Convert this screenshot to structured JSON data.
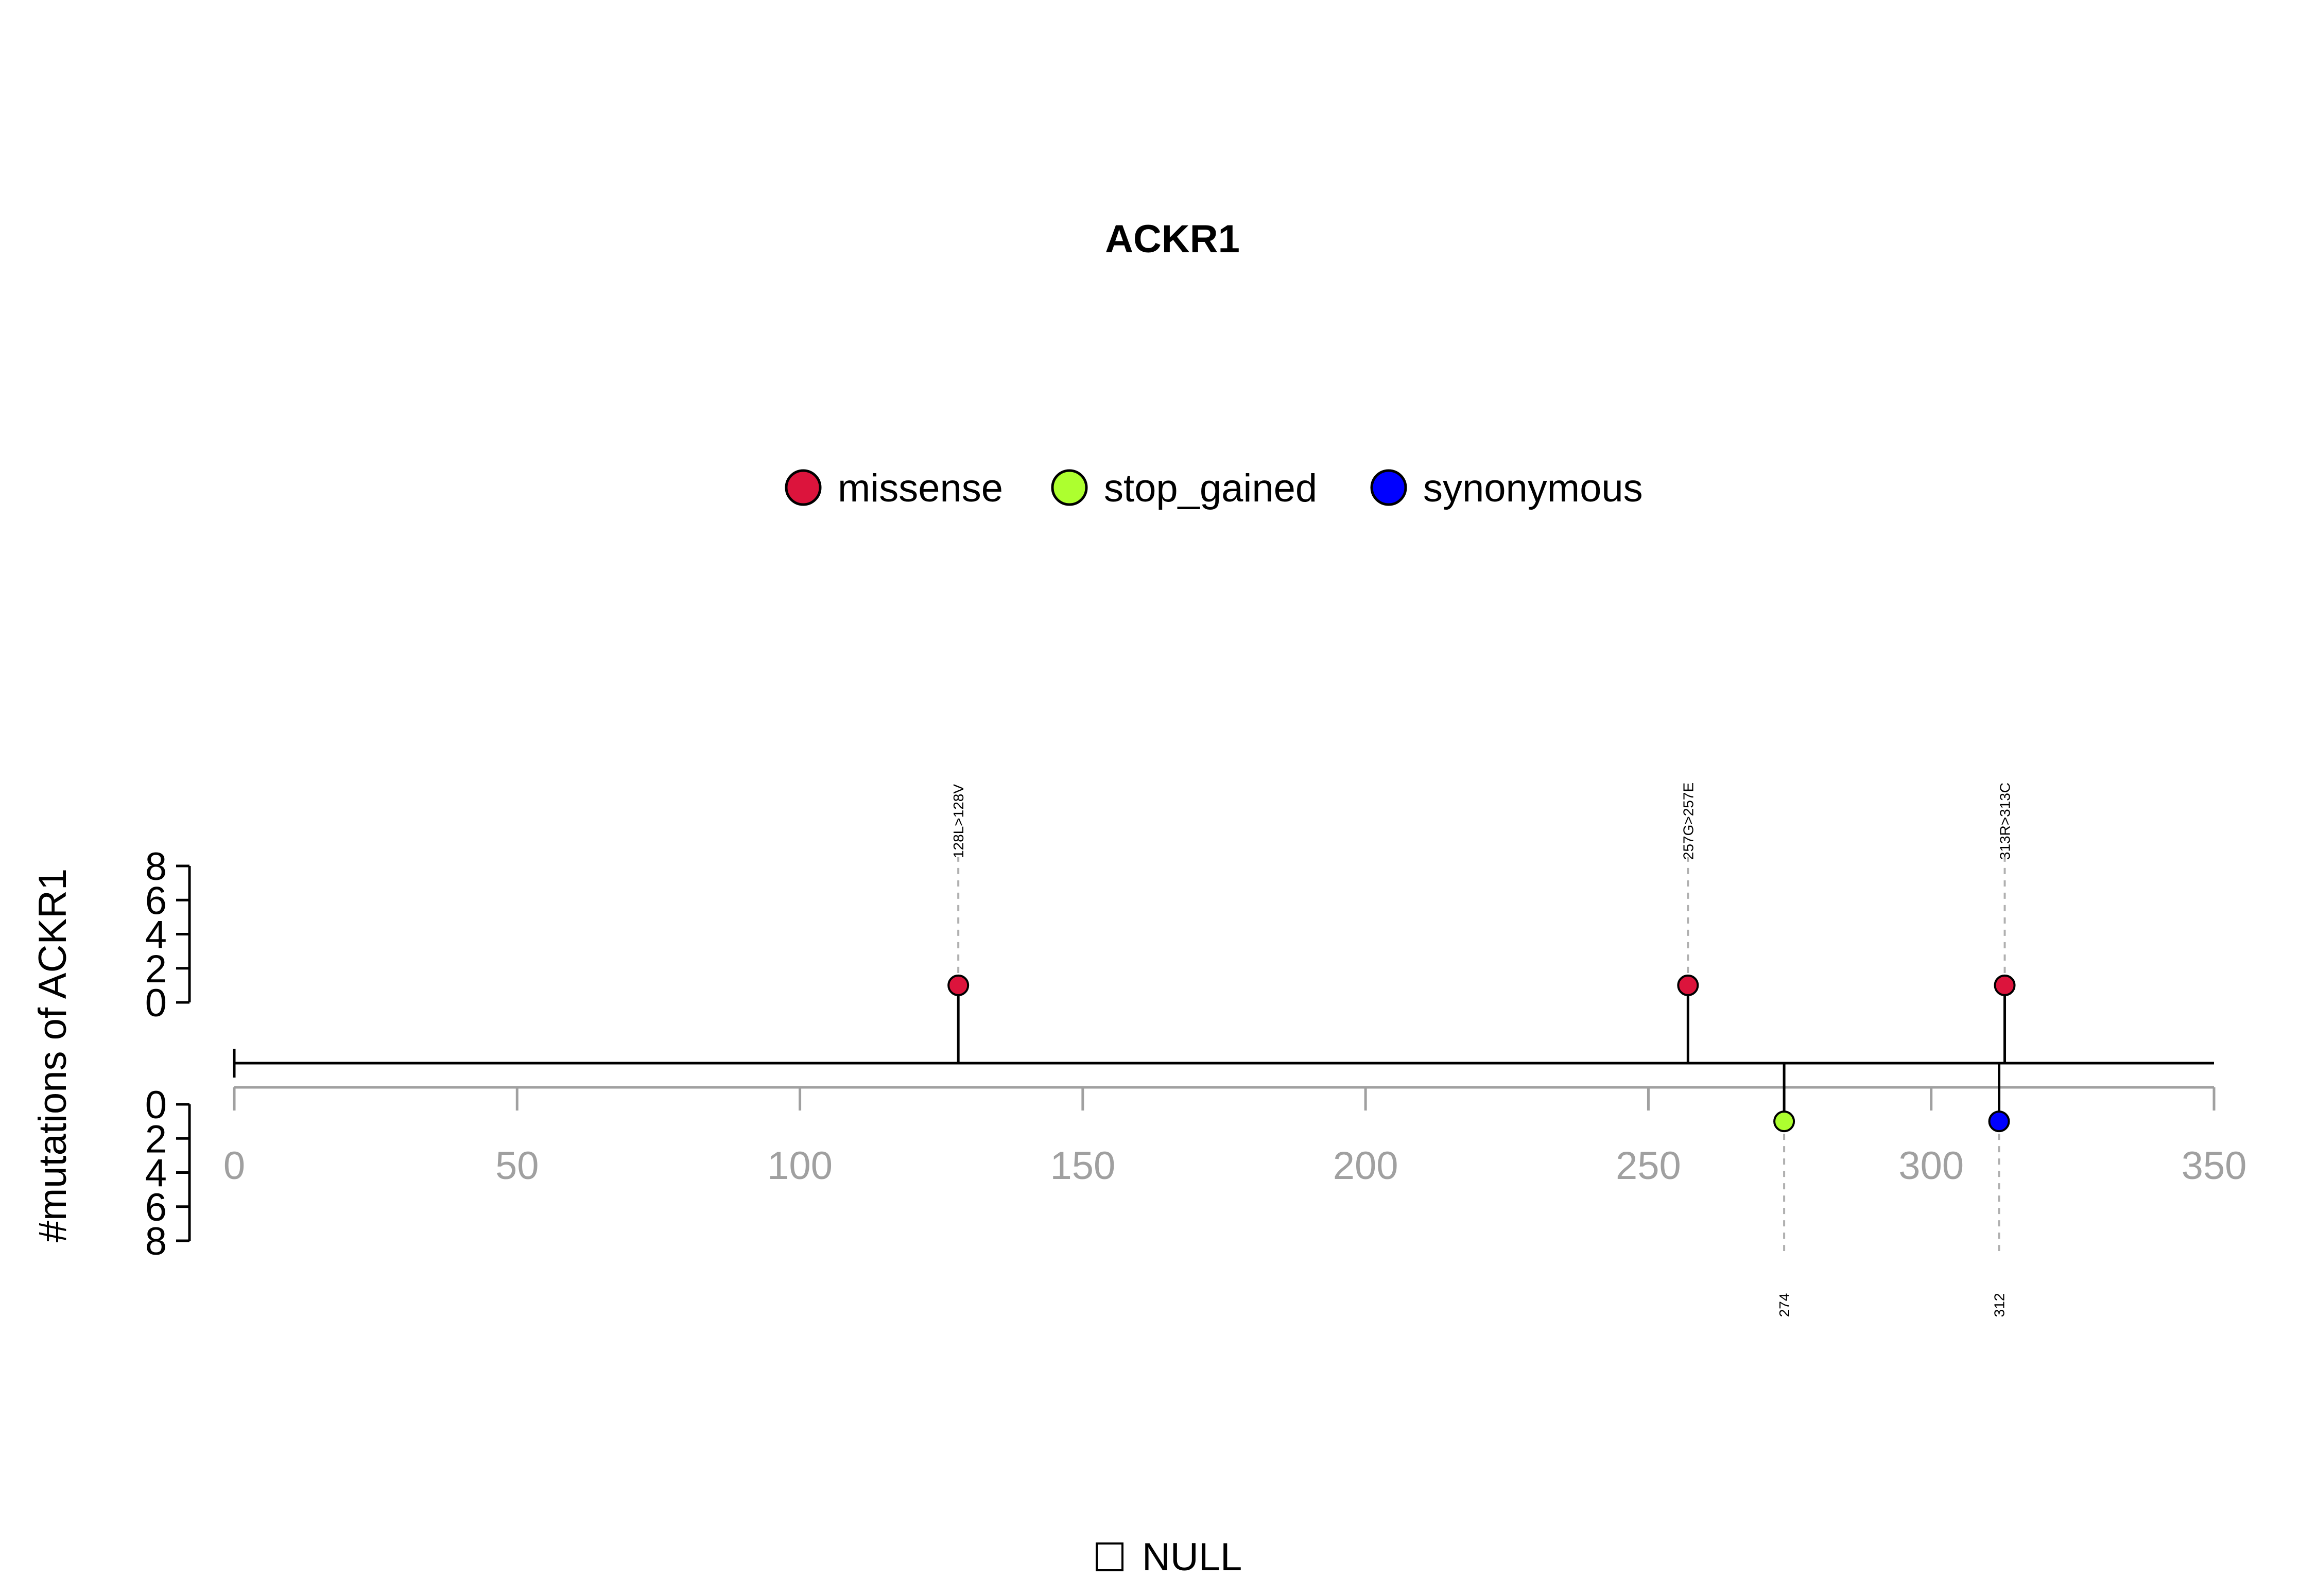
{
  "chart_data": {
    "type": "lollipop",
    "title": "ACKR1",
    "ylabel": "#mutations of ACKR1",
    "xlim": [
      0,
      350
    ],
    "x_ticks": [
      0,
      50,
      100,
      150,
      200,
      250,
      300,
      350
    ],
    "y_ticks": [
      0,
      2,
      4,
      6,
      8
    ],
    "legend": [
      {
        "name": "missense",
        "color": "#DC143C"
      },
      {
        "name": "stop_gained",
        "color": "#ADFF2F"
      },
      {
        "name": "synonymous",
        "color": "#0000FF"
      }
    ],
    "mutations": [
      {
        "position": 128,
        "count": 1,
        "type": "missense",
        "label": "128L>128V",
        "track": "top",
        "color": "#DC143C"
      },
      {
        "position": 257,
        "count": 1,
        "type": "missense",
        "label": "257G>257E",
        "track": "top",
        "color": "#DC143C"
      },
      {
        "position": 313,
        "count": 1,
        "type": "missense",
        "label": "313R>313C",
        "track": "top",
        "color": "#DC143C"
      },
      {
        "position": 274,
        "count": 1,
        "type": "stop_gained",
        "label": "274",
        "track": "bottom",
        "color": "#ADFF2F"
      },
      {
        "position": 312,
        "count": 1,
        "type": "synonymous",
        "label": "312",
        "track": "bottom",
        "color": "#0000FF"
      }
    ],
    "footer_legend": "NULL"
  }
}
